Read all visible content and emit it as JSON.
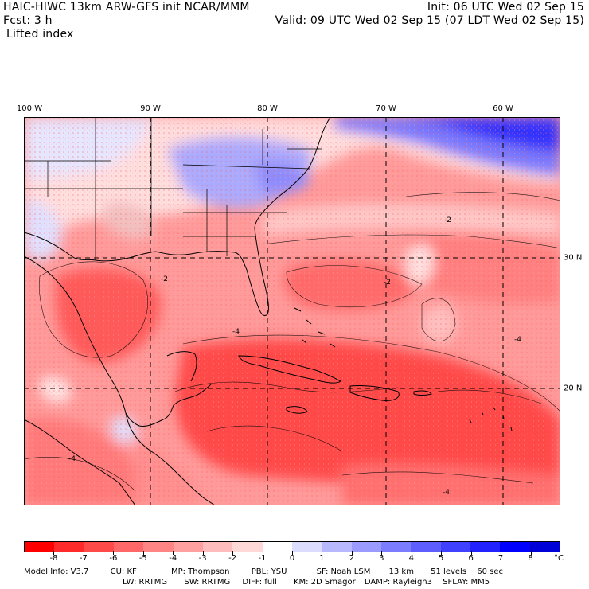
{
  "header": {
    "title": "HAIC-HIWC 13km ARW-GFS init    NCAR/MMM",
    "fcst": "Fcst:     3 h",
    "field": "Lifted index",
    "init": "Init: 06 UTC Wed 02 Sep 15",
    "valid": "Valid: 09 UTC Wed 02 Sep 15 (07 LDT Wed 02 Sep 15)"
  },
  "map": {
    "lon_labels": [
      "100 W",
      "90 W",
      "80 W",
      "70 W",
      "60 W"
    ],
    "lat_labels": [
      "30 N",
      "20 N"
    ],
    "contour_labels": [
      "-2",
      "-2",
      "-4",
      "-4",
      "-4",
      "-4",
      "-2"
    ]
  },
  "colorbar": {
    "ticks": [
      "-8",
      "-7",
      "-6",
      "-5",
      "-4",
      "-3",
      "-2",
      "-1",
      "0",
      "1",
      "2",
      "3",
      "4",
      "5",
      "6",
      "7",
      "8"
    ],
    "unit": "°C",
    "colors": [
      "#ff0000",
      "#ff2a2a",
      "#ff4a4a",
      "#ff6868",
      "#ff8484",
      "#ffa0a0",
      "#ffbcbc",
      "#ffd8d8",
      "#ffffff",
      "#dcdcff",
      "#b8b8ff",
      "#9a9aff",
      "#7c7cff",
      "#5e5eff",
      "#4040ff",
      "#2222ff",
      "#0000ff",
      "#0000d8"
    ]
  },
  "footer": {
    "line1": [
      "Model Info: V3.7",
      "CU: KF",
      "MP: Thompson",
      "PBL: YSU",
      "SF: Noah LSM",
      "13 km",
      "51 levels",
      "60 sec"
    ],
    "line2": [
      "LW: RRTMG",
      "SW: RRTMG",
      "DIFF: full",
      "KM: 2D Smagor",
      "DAMP: Rayleigh3",
      "SFLAY: MM5"
    ]
  }
}
